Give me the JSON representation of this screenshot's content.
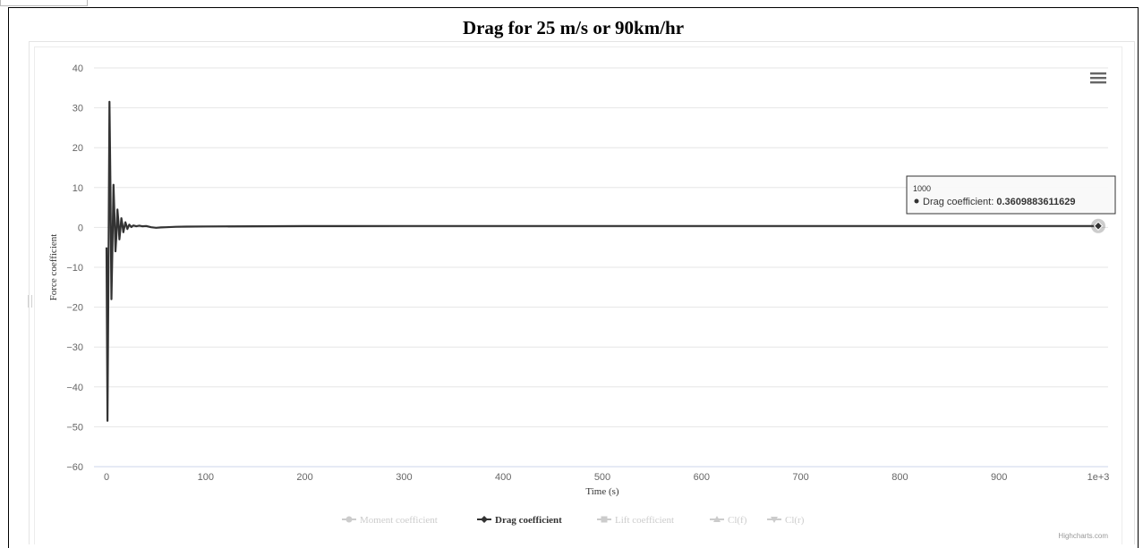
{
  "page": {
    "title": "Drag for 25 m/s or 90km/hr"
  },
  "chart_data": {
    "type": "line",
    "title": "",
    "xlabel": "Time (s)",
    "ylabel": "Force coefficient",
    "xlim": [
      0,
      1000
    ],
    "ylim": [
      -60,
      40
    ],
    "x_ticks": [
      0,
      100,
      200,
      300,
      400,
      500,
      600,
      700,
      800,
      900,
      1000
    ],
    "x_tick_labels": [
      "0",
      "100",
      "200",
      "300",
      "400",
      "500",
      "600",
      "700",
      "800",
      "900",
      "1e+3"
    ],
    "y_ticks": [
      40,
      30,
      20,
      10,
      0,
      -10,
      -20,
      -30,
      -40,
      -50,
      -60
    ],
    "y_tick_labels": [
      "40",
      "30",
      "20",
      "10",
      "0",
      "−10",
      "−20",
      "−30",
      "−40",
      "−50",
      "−60"
    ],
    "grid": true,
    "legend_position": "bottom-center",
    "legend": [
      {
        "name": "Moment coefficient",
        "visible": false,
        "marker": "circle"
      },
      {
        "name": "Drag coefficient",
        "visible": true,
        "marker": "diamond"
      },
      {
        "name": "Lift coefficient",
        "visible": false,
        "marker": "square"
      },
      {
        "name": "Cl(f)",
        "visible": false,
        "marker": "triangle"
      },
      {
        "name": "Cl(r)",
        "visible": false,
        "marker": "triangle-down"
      }
    ],
    "series": [
      {
        "name": "Drag coefficient",
        "color": "#333333",
        "x": [
          0,
          1,
          2,
          3,
          4,
          5,
          6,
          7,
          8,
          9,
          10,
          11,
          12,
          13,
          14,
          15,
          16,
          17,
          18,
          19,
          20,
          21,
          22,
          23,
          24,
          25,
          27,
          30,
          33,
          36,
          40,
          45,
          50,
          55,
          60,
          70,
          80,
          100,
          150,
          200,
          300,
          400,
          500,
          600,
          700,
          800,
          900,
          1000
        ],
        "y": [
          -5,
          -48.5,
          -10,
          31.5,
          10,
          -18,
          -5,
          10.7,
          3,
          -6,
          -2,
          4.5,
          1.5,
          -3,
          -0.5,
          2.3,
          0.8,
          -1.2,
          0,
          1.3,
          0.5,
          -0.4,
          0.2,
          0.7,
          0.4,
          0.1,
          0.5,
          0.3,
          0.45,
          0.3,
          0.35,
          0.05,
          -0.1,
          0,
          0.05,
          0.15,
          0.2,
          0.25,
          0.3,
          0.33,
          0.35,
          0.36,
          0.36,
          0.36,
          0.36,
          0.36,
          0.36,
          0.3609883611629
        ]
      }
    ],
    "tooltip": {
      "x_label": "1000",
      "series_name": "Drag coefficient",
      "value_text": "0.3609883611629"
    },
    "menu_icon": "hamburger-menu-icon",
    "credit": "Highcharts.com"
  }
}
